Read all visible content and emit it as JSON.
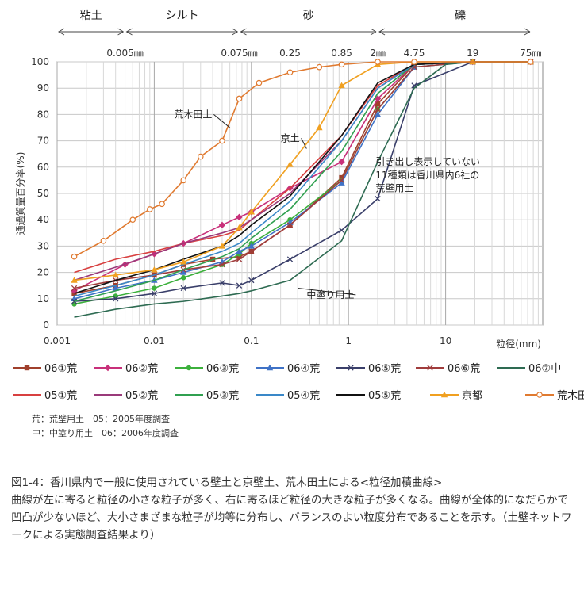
{
  "chart_data": {
    "type": "line",
    "x_scale": "log",
    "xlim": [
      0.001,
      100
    ],
    "ylim": [
      0,
      100
    ],
    "grid": true,
    "xlabel": "粒径(mm)",
    "ylabel": "通過質量百分率(%)",
    "x_ticks": [
      {
        "v": 0.001,
        "label": "0.001"
      },
      {
        "v": 0.01,
        "label": "0.01"
      },
      {
        "v": 0.1,
        "label": "0.1"
      },
      {
        "v": 1,
        "label": "1"
      },
      {
        "v": 10,
        "label": "10"
      }
    ],
    "y_ticks": [
      0,
      10,
      20,
      30,
      40,
      50,
      60,
      70,
      80,
      90,
      100
    ],
    "regions": [
      {
        "label": "粘土",
        "from": 0.001,
        "to": 0.005
      },
      {
        "label": "シルト",
        "from": 0.005,
        "to": 0.075
      },
      {
        "label": "砂",
        "from": 0.075,
        "to": 2
      },
      {
        "label": "礫",
        "from": 2,
        "to": 100
      }
    ],
    "sieve_labels": [
      {
        "v": 0.005,
        "label": "0.005㎜"
      },
      {
        "v": 0.075,
        "label": "0.075㎜"
      },
      {
        "v": 0.25,
        "label": "0.25"
      },
      {
        "v": 0.85,
        "label": "0.85"
      },
      {
        "v": 2,
        "label": "2㎜"
      },
      {
        "v": 4.75,
        "label": "4.75"
      },
      {
        "v": 19,
        "label": "19"
      },
      {
        "v": 75,
        "label": "75㎜"
      }
    ],
    "annotations": [
      {
        "text": "荒木田土",
        "x": 0.016,
        "y": 80,
        "arrow_x": 0.06,
        "arrow_y": 75
      },
      {
        "text": "京土",
        "x": 0.2,
        "y": 71,
        "arrow_x": 0.37,
        "arrow_y": 67
      },
      {
        "text": "中塗り用土",
        "x": 0.37,
        "y": 11.5,
        "arrow_x": 0.3,
        "arrow_y": 14
      },
      {
        "text": "引き出し表示していない",
        "x": 1.9,
        "y": 62,
        "arrow_x": null,
        "arrow_y": null
      },
      {
        "text": "11種類は香川県内6社の",
        "x": 1.9,
        "y": 57,
        "arrow_x": null,
        "arrow_y": null
      },
      {
        "text": "荒壁用土",
        "x": 1.9,
        "y": 52,
        "arrow_x": null,
        "arrow_y": null
      }
    ],
    "series": [
      {
        "name": "06①荒",
        "color": "#a0402c",
        "marker": "square",
        "x": [
          0.0015,
          0.004,
          0.01,
          0.02,
          0.04,
          0.075,
          0.1,
          0.25,
          0.85,
          2,
          4.75,
          19,
          75
        ],
        "y": [
          12,
          15,
          19,
          23,
          25,
          26,
          28,
          38,
          56,
          84,
          99,
          100,
          100
        ]
      },
      {
        "name": "06②荒",
        "color": "#c8307a",
        "marker": "diamond",
        "x": [
          0.0015,
          0.005,
          0.01,
          0.02,
          0.05,
          0.075,
          0.1,
          0.25,
          0.85,
          2,
          4.75,
          19,
          75
        ],
        "y": [
          13,
          23,
          27,
          31,
          38,
          41,
          43,
          52,
          62,
          86,
          99,
          100,
          100
        ]
      },
      {
        "name": "06③荒",
        "color": "#3cb03c",
        "marker": "circle",
        "x": [
          0.0015,
          0.004,
          0.01,
          0.02,
          0.05,
          0.075,
          0.1,
          0.25,
          0.85,
          2,
          4.75,
          19,
          75
        ],
        "y": [
          8,
          11,
          14,
          18,
          23,
          27,
          31,
          40,
          55,
          82,
          98,
          100,
          100
        ]
      },
      {
        "name": "06④荒",
        "color": "#3f72c6",
        "marker": "triangle",
        "x": [
          0.0015,
          0.004,
          0.01,
          0.02,
          0.05,
          0.075,
          0.1,
          0.25,
          0.85,
          2,
          4.75,
          19,
          75
        ],
        "y": [
          10,
          14,
          17,
          20,
          24,
          28,
          30,
          39,
          54,
          80,
          98,
          100,
          100
        ]
      },
      {
        "name": "06⑤荒",
        "color": "#3a3f6a",
        "marker": "x",
        "x": [
          0.0015,
          0.004,
          0.01,
          0.02,
          0.05,
          0.075,
          0.1,
          0.25,
          0.85,
          2,
          4.75,
          19,
          75
        ],
        "y": [
          9,
          10,
          12,
          14,
          16,
          15,
          17,
          25,
          36,
          48,
          91,
          100,
          100
        ]
      },
      {
        "name": "06⑥荒",
        "color": "#a03c3c",
        "marker": "x",
        "x": [
          0.0015,
          0.004,
          0.01,
          0.02,
          0.05,
          0.075,
          0.1,
          0.25,
          0.85,
          2,
          4.75,
          19,
          75
        ],
        "y": [
          14,
          17,
          19,
          21,
          23,
          25,
          28,
          38,
          55,
          82,
          98,
          100,
          100
        ]
      },
      {
        "name": "06⑦中",
        "color": "#2e6b52",
        "marker": "none",
        "x": [
          0.0015,
          0.004,
          0.01,
          0.02,
          0.05,
          0.075,
          0.1,
          0.25,
          0.85,
          2,
          4.75,
          10,
          19,
          75
        ],
        "y": [
          3,
          6,
          8,
          9,
          11,
          12,
          13,
          17,
          32,
          62,
          90,
          99,
          100,
          100
        ]
      },
      {
        "name": "05①荒",
        "color": "#d84040",
        "marker": "none",
        "x": [
          0.0015,
          0.004,
          0.01,
          0.02,
          0.05,
          0.075,
          0.1,
          0.25,
          0.85,
          2,
          4.75,
          19,
          75
        ],
        "y": [
          20,
          25,
          28,
          31,
          34,
          36,
          40,
          52,
          72,
          91,
          99,
          100,
          100
        ]
      },
      {
        "name": "05②荒",
        "color": "#9a3a7a",
        "marker": "none",
        "x": [
          0.0015,
          0.004,
          0.01,
          0.02,
          0.05,
          0.075,
          0.1,
          0.25,
          0.85,
          2,
          4.75,
          19,
          75
        ],
        "y": [
          17,
          22,
          27,
          31,
          35,
          37,
          40,
          50,
          70,
          90,
          99,
          100,
          100
        ]
      },
      {
        "name": "05③荒",
        "color": "#30a050",
        "marker": "none",
        "x": [
          0.0015,
          0.004,
          0.01,
          0.02,
          0.05,
          0.075,
          0.1,
          0.25,
          0.85,
          2,
          4.75,
          19,
          75
        ],
        "y": [
          9,
          13,
          17,
          21,
          26,
          29,
          33,
          44,
          66,
          88,
          99,
          100,
          100
        ]
      },
      {
        "name": "05④荒",
        "color": "#3a88c8",
        "marker": "none",
        "x": [
          0.0015,
          0.004,
          0.01,
          0.02,
          0.05,
          0.075,
          0.1,
          0.25,
          0.85,
          2,
          4.75,
          19,
          75
        ],
        "y": [
          11,
          15,
          19,
          23,
          28,
          31,
          35,
          47,
          70,
          90,
          99,
          100,
          100
        ]
      },
      {
        "name": "05⑤荒",
        "color": "#111111",
        "marker": "none",
        "x": [
          0.0015,
          0.004,
          0.01,
          0.02,
          0.05,
          0.075,
          0.1,
          0.25,
          0.85,
          2,
          4.75,
          19,
          75
        ],
        "y": [
          12,
          17,
          21,
          25,
          30,
          34,
          38,
          49,
          72,
          92,
          99,
          100,
          100
        ]
      },
      {
        "name": "京都",
        "color": "#f0a020",
        "marker": "triangle",
        "x": [
          0.0015,
          0.004,
          0.01,
          0.02,
          0.05,
          0.075,
          0.1,
          0.25,
          0.5,
          0.85,
          2,
          4.75,
          19,
          75
        ],
        "y": [
          17,
          19,
          21,
          24,
          30,
          37,
          43,
          61,
          75,
          91,
          99,
          100,
          100,
          100
        ]
      },
      {
        "name": "荒木田",
        "color": "#e07a30",
        "marker": "circle-open",
        "x": [
          0.0015,
          0.003,
          0.006,
          0.009,
          0.012,
          0.02,
          0.03,
          0.05,
          0.075,
          0.12,
          0.25,
          0.5,
          0.85,
          2,
          4.75,
          75
        ],
        "y": [
          26,
          32,
          40,
          44,
          46,
          55,
          64,
          70,
          86,
          92,
          96,
          98,
          99,
          100,
          100,
          100
        ]
      }
    ]
  },
  "notes": [
    "荒：荒壁用土　05：2005年度調査",
    "中：中塗り用土　06：2006年度調査"
  ],
  "caption": {
    "title": "図1-4：香川県内で一般に使用されている壁土と京壁土、荒木田土による<粒径加積曲線>",
    "body": "曲線が左に寄ると粒径の小さな粒子が多く、右に寄るほど粒径の大きな粒子が多くなる。曲線が全体的になだらかで凹凸が少ないほど、大小さまざまな粒子が均等に分布し、バランスのよい粒度分布であることを示す。（土壁ネットワークによる実態調査結果より）"
  }
}
